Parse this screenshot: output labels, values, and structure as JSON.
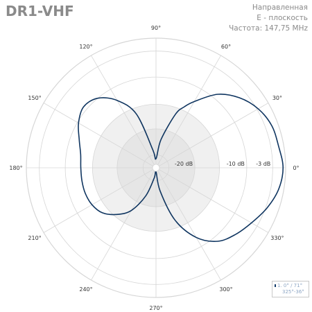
{
  "title": "DR1-VHF",
  "info": {
    "line1": "Направленная",
    "line2": "E - плоскость",
    "line3": "Частота: 147,75 MHz"
  },
  "legend": {
    "line1": "1. 0° / 71°",
    "line2": "325°-36°"
  },
  "colors": {
    "trace": "#0f3560",
    "grid": "#d6d6d6",
    "label": "#333333",
    "ring_outer": "#ffffff",
    "ring_mid": "#f0f0f0",
    "ring_inner": "#e6e6e6"
  },
  "chart_data": {
    "type": "polar",
    "angle_ticks": [
      "0°",
      "30°",
      "60°",
      "90°",
      "120°",
      "150°",
      "180°",
      "210°",
      "240°",
      "270°",
      "300°",
      "330°"
    ],
    "radial_ticks": [
      "-20 dB",
      "-10 dB",
      "-3 dB"
    ],
    "series": [
      {
        "name": "1. 0° / 71°",
        "angles_deg": [
          0,
          10,
          20,
          30,
          40,
          50,
          60,
          65,
          70,
          80,
          90,
          100,
          110,
          120,
          130,
          140,
          150,
          160,
          170,
          180,
          190,
          200,
          210,
          220,
          230,
          240,
          250,
          260,
          270,
          280,
          290,
          300,
          310,
          320,
          330,
          340,
          350
        ],
        "radius_fraction": [
          0.98,
          0.96,
          0.95,
          0.91,
          0.84,
          0.74,
          0.59,
          0.52,
          0.44,
          0.22,
          0.07,
          0.14,
          0.44,
          0.6,
          0.7,
          0.73,
          0.69,
          0.63,
          0.59,
          0.58,
          0.58,
          0.58,
          0.57,
          0.54,
          0.47,
          0.38,
          0.23,
          0.08,
          0.03,
          0.18,
          0.43,
          0.62,
          0.74,
          0.8,
          0.85,
          0.91,
          0.96
        ]
      }
    ]
  }
}
